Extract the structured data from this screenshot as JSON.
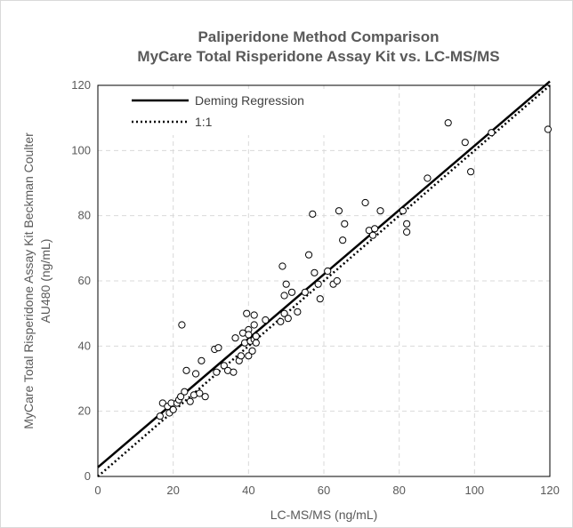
{
  "chart_data": {
    "type": "scatter",
    "title": "Paliperidone Method Comparison",
    "subtitle": "MyCare Total Risperidone Assay Kit vs. LC-MS/MS",
    "xlabel": "LC-MS/MS  (ng/mL)",
    "ylabel_line1": "MyCare Total  Risperidone  Assay Kit Beckman Coulter",
    "ylabel_line2": "AU480  (ng/mL)",
    "xlim": [
      0,
      120
    ],
    "ylim": [
      0,
      120
    ],
    "xticks": [
      0,
      20,
      40,
      60,
      80,
      100,
      120
    ],
    "yticks": [
      0,
      20,
      40,
      60,
      80,
      100,
      120
    ],
    "grid": true,
    "legend_position": "top-left",
    "lines": [
      {
        "name": "Deming Regression",
        "style": "solid",
        "color": "#000000",
        "x": [
          0,
          120
        ],
        "y": [
          2.8,
          121.2
        ]
      },
      {
        "name": "1:1",
        "style": "dotted",
        "color": "#000000",
        "x": [
          0,
          120
        ],
        "y": [
          0,
          120
        ]
      }
    ],
    "points": [
      [
        16.5,
        18.5
      ],
      [
        17.2,
        22.5
      ],
      [
        18.5,
        21.5
      ],
      [
        19.0,
        19.5
      ],
      [
        19.5,
        22.5
      ],
      [
        20.0,
        20.5
      ],
      [
        21.0,
        22.5
      ],
      [
        21.5,
        23.5
      ],
      [
        22.0,
        24.5
      ],
      [
        22.3,
        46.5
      ],
      [
        23.0,
        26.0
      ],
      [
        23.5,
        32.5
      ],
      [
        24.5,
        23.0
      ],
      [
        25.5,
        25.0
      ],
      [
        26.0,
        31.5
      ],
      [
        27.0,
        25.5
      ],
      [
        27.5,
        35.5
      ],
      [
        28.5,
        24.5
      ],
      [
        31.0,
        39.0
      ],
      [
        31.5,
        32.0
      ],
      [
        32.0,
        39.5
      ],
      [
        33.5,
        34.0
      ],
      [
        34.5,
        32.5
      ],
      [
        36.0,
        32.0
      ],
      [
        36.5,
        42.5
      ],
      [
        37.5,
        35.5
      ],
      [
        38.0,
        37.0
      ],
      [
        38.5,
        44.0
      ],
      [
        39.0,
        41.0
      ],
      [
        39.5,
        50.0
      ],
      [
        40.0,
        45.0
      ],
      [
        40.0,
        43.5
      ],
      [
        40.0,
        37.0
      ],
      [
        40.5,
        41.5
      ],
      [
        41.0,
        38.5
      ],
      [
        41.5,
        46.5
      ],
      [
        41.5,
        42.0
      ],
      [
        41.5,
        49.5
      ],
      [
        42.0,
        41.0
      ],
      [
        42.0,
        43.0
      ],
      [
        44.5,
        48.0
      ],
      [
        48.5,
        47.5
      ],
      [
        49.0,
        64.5
      ],
      [
        49.5,
        50.0
      ],
      [
        49.5,
        55.5
      ],
      [
        50.0,
        59.0
      ],
      [
        50.5,
        48.5
      ],
      [
        51.5,
        56.5
      ],
      [
        53.0,
        50.5
      ],
      [
        55.0,
        56.5
      ],
      [
        56.0,
        68.0
      ],
      [
        57.0,
        80.5
      ],
      [
        57.5,
        62.5
      ],
      [
        58.5,
        59.0
      ],
      [
        59.0,
        54.5
      ],
      [
        61.0,
        63.0
      ],
      [
        62.5,
        59.0
      ],
      [
        63.5,
        60.0
      ],
      [
        64.0,
        81.5
      ],
      [
        65.0,
        72.5
      ],
      [
        65.5,
        77.5
      ],
      [
        71.0,
        84.0
      ],
      [
        72.0,
        75.5
      ],
      [
        73.0,
        74.0
      ],
      [
        73.5,
        76.0
      ],
      [
        75.0,
        81.5
      ],
      [
        81.0,
        81.5
      ],
      [
        82.0,
        77.5
      ],
      [
        82.0,
        75.0
      ],
      [
        87.5,
        91.5
      ],
      [
        93.0,
        108.5
      ],
      [
        97.5,
        102.5
      ],
      [
        99.0,
        93.5
      ],
      [
        104.5,
        105.5
      ],
      [
        119.5,
        106.5
      ]
    ]
  }
}
